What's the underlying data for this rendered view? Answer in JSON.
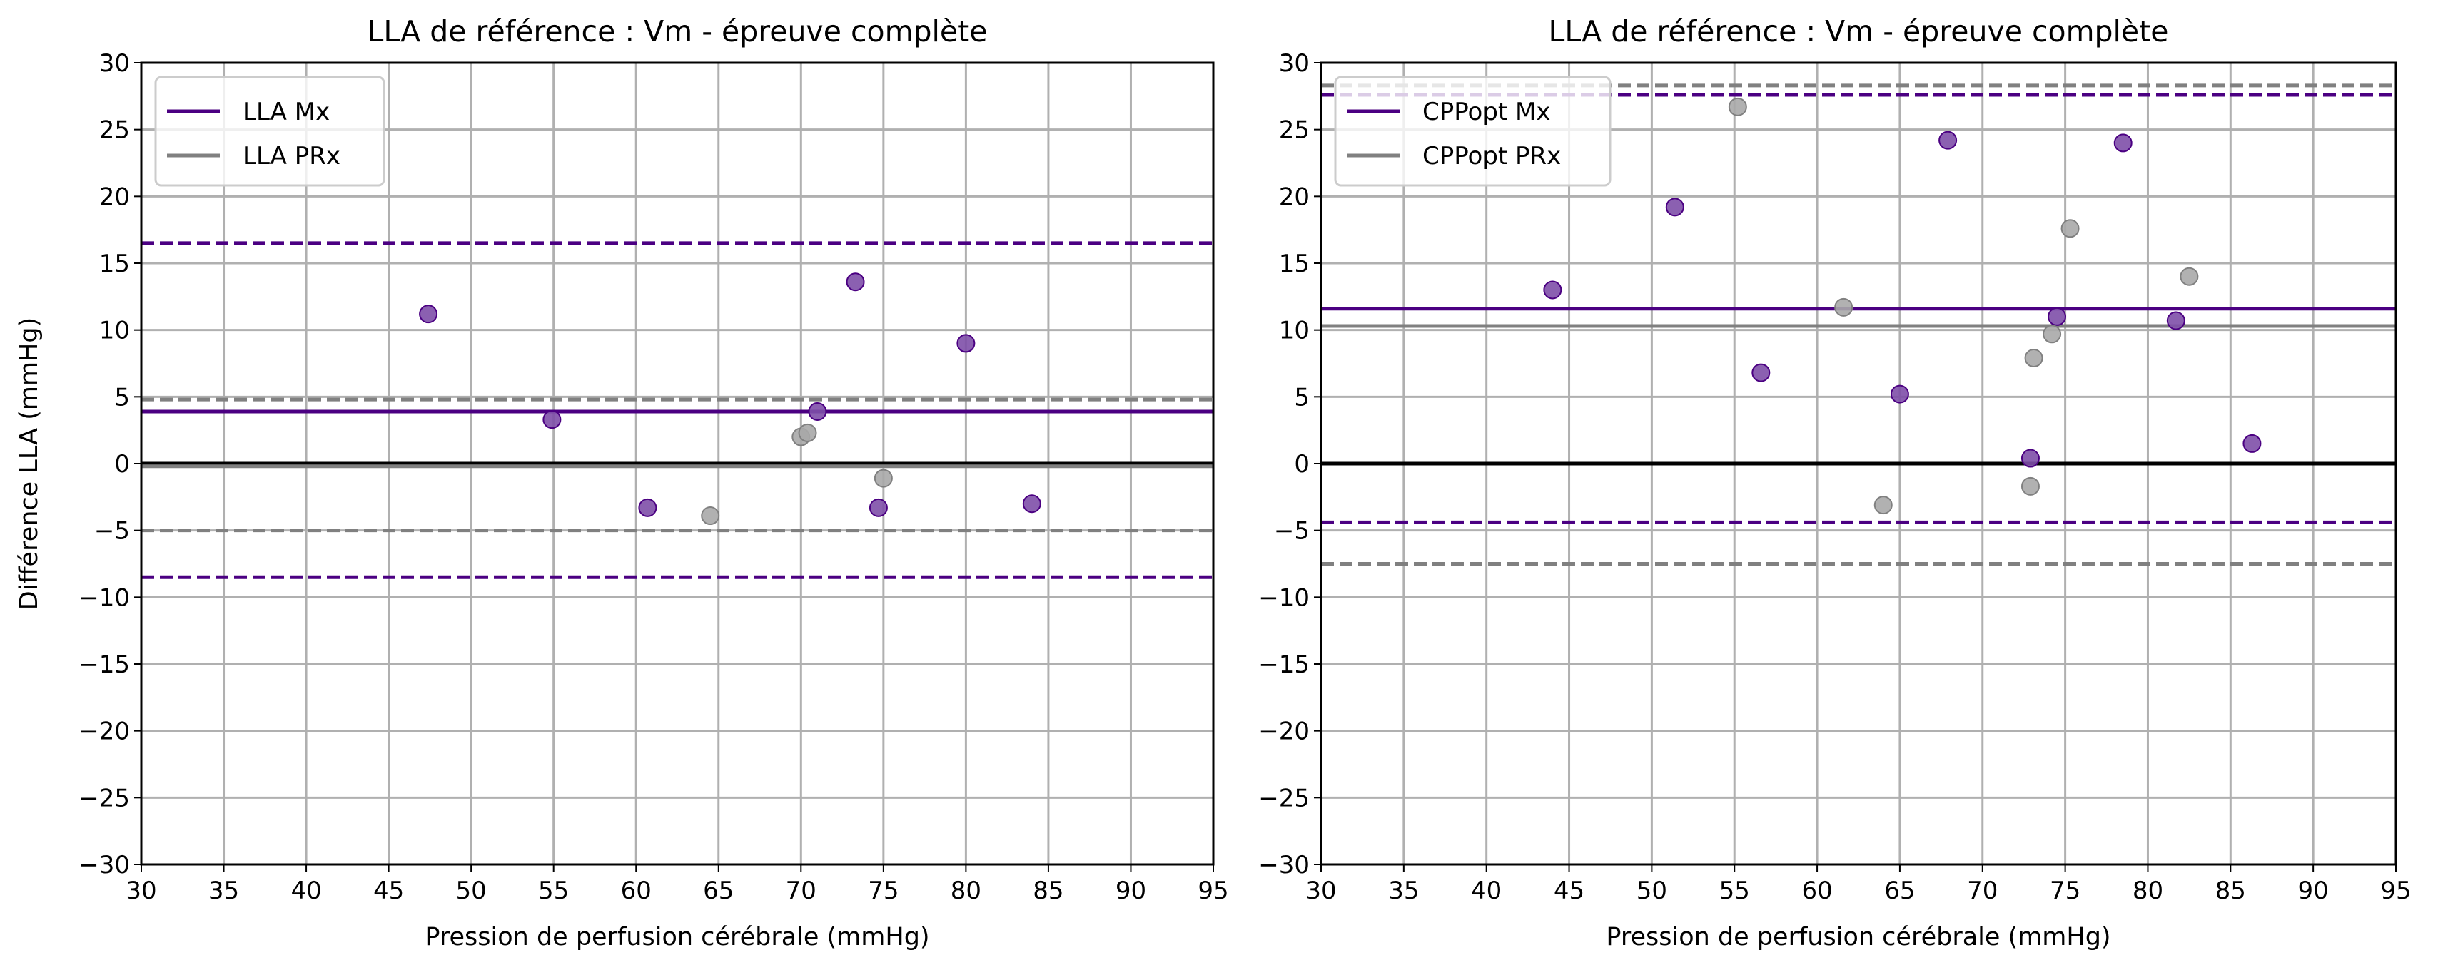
{
  "colors": {
    "mx": "#4b0082",
    "prx": "#808080",
    "mx_point": "#7e4fa8",
    "prx_point": "#a9a9a9"
  },
  "chart_data": [
    {
      "type": "scatter",
      "title": "LLA de référence : Vm - épreuve complète",
      "xlabel": "Pression de perfusion cérébrale (mmHg)",
      "ylabel": "Différence LLA (mmHg)",
      "xlim": [
        30,
        95
      ],
      "ylim": [
        -30,
        30
      ],
      "xticks": [
        "30",
        "35",
        "40",
        "45",
        "50",
        "55",
        "60",
        "65",
        "70",
        "75",
        "80",
        "85",
        "90",
        "95"
      ],
      "yticks": [
        "−30",
        "−25",
        "−20",
        "−15",
        "−10",
        "−5",
        "0",
        "5",
        "10",
        "15",
        "20",
        "25",
        "30"
      ],
      "grid": true,
      "legend_position": "top-left",
      "series": [
        {
          "name": "LLA Mx",
          "color_key": "mx",
          "mean": 3.9,
          "loa": [
            16.5,
            -8.5
          ],
          "points": [
            [
              47.4,
              11.2
            ],
            [
              54.9,
              3.3
            ],
            [
              60.7,
              -3.3
            ],
            [
              71.0,
              3.9
            ],
            [
              73.3,
              13.6
            ],
            [
              74.7,
              -3.3
            ],
            [
              80.0,
              9.0
            ],
            [
              84.0,
              -3.0
            ]
          ]
        },
        {
          "name": "LLA PRx",
          "color_key": "prx",
          "mean": -0.2,
          "loa": [
            4.8,
            -5.0
          ],
          "points": [
            [
              64.5,
              -3.9
            ],
            [
              70.0,
              2.0
            ],
            [
              70.4,
              2.3
            ],
            [
              75.0,
              -1.1
            ]
          ]
        }
      ]
    },
    {
      "type": "scatter",
      "title": "LLA de référence : Vm - épreuve complète",
      "xlabel": "Pression de perfusion cérébrale (mmHg)",
      "ylabel": "",
      "xlim": [
        30,
        95
      ],
      "ylim": [
        -30,
        30
      ],
      "xticks": [
        "30",
        "35",
        "40",
        "45",
        "50",
        "55",
        "60",
        "65",
        "70",
        "75",
        "80",
        "85",
        "90",
        "95"
      ],
      "yticks": [
        "−30",
        "−25",
        "−20",
        "−15",
        "−10",
        "−5",
        "0",
        "5",
        "10",
        "15",
        "20",
        "25",
        "30"
      ],
      "grid": true,
      "legend_position": "top-left",
      "series": [
        {
          "name": "CPPopt Mx",
          "color_key": "mx",
          "mean": 11.6,
          "loa": [
            27.6,
            -4.4
          ],
          "points": [
            [
              44.0,
              13.0
            ],
            [
              51.4,
              19.2
            ],
            [
              56.6,
              6.8
            ],
            [
              65.0,
              5.2
            ],
            [
              67.9,
              24.2
            ],
            [
              72.9,
              0.4
            ],
            [
              74.5,
              11.0
            ],
            [
              78.5,
              24.0
            ],
            [
              81.7,
              10.7
            ],
            [
              86.3,
              1.5
            ]
          ]
        },
        {
          "name": "CPPopt PRx",
          "color_key": "prx",
          "mean": 10.3,
          "loa": [
            28.3,
            -7.5
          ],
          "points": [
            [
              55.2,
              26.7
            ],
            [
              61.6,
              11.7
            ],
            [
              64.0,
              -3.1
            ],
            [
              72.9,
              -1.7
            ],
            [
              73.1,
              7.9
            ],
            [
              74.2,
              9.7
            ],
            [
              75.3,
              17.6
            ],
            [
              82.5,
              14.0
            ]
          ]
        }
      ]
    }
  ]
}
